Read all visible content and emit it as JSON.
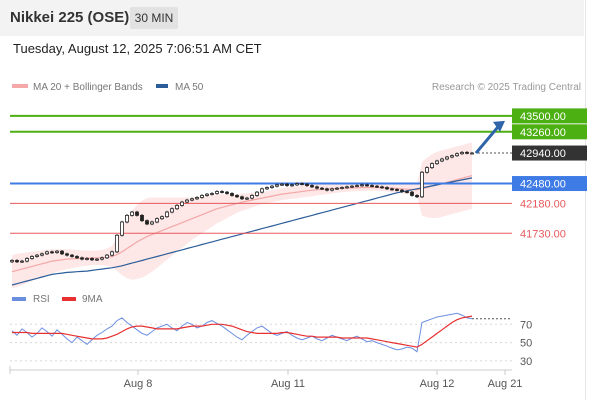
{
  "header": {
    "title": "Nikkei 225 (OSE)",
    "timeframe": "30 MIN"
  },
  "datetime": "Tuesday, August 12, 2025 7:06:51 AM CET",
  "copyright": "Research © 2025 Trading Central",
  "colors": {
    "resistance": "#4caf12",
    "pivot": "#3f7be5",
    "support": "#e8595d",
    "last": "#333333",
    "ma20": "#f4a8a8",
    "ma50": "#2c5d9a",
    "bollinger_fill": "#fde3e3",
    "arrow": "#2f64aa",
    "candle": "#222222",
    "rsi": "#6b8fe0",
    "rsi_ma": "#e83030"
  },
  "chart_data": [
    {
      "type": "candlestick",
      "legend": [
        {
          "name": "MA 20 + Bollinger Bands",
          "color": "#f4a8a8"
        },
        {
          "name": "MA 50",
          "color": "#2c5d9a"
        }
      ],
      "ylim": [
        40950,
        43800
      ],
      "x_ticks": [
        "Aug 8",
        "Aug 11",
        "Aug 12",
        "Aug 21"
      ],
      "levels": [
        {
          "value": 43500,
          "label": "43500.00",
          "kind": "resistance"
        },
        {
          "value": 43260,
          "label": "43260.00",
          "kind": "resistance"
        },
        {
          "value": 42940,
          "label": "42940.00",
          "kind": "last"
        },
        {
          "value": 42480,
          "label": "42480.00",
          "kind": "pivot"
        },
        {
          "value": 42180,
          "label": "42180.00",
          "kind": "support"
        },
        {
          "value": 41730,
          "label": "41730.00",
          "kind": "support"
        }
      ],
      "closes": [
        41320,
        41300,
        41310,
        41350,
        41380,
        41400,
        41420,
        41450,
        41440,
        41460,
        41420,
        41400,
        41380,
        41360,
        41340,
        41350,
        41330,
        41340,
        41360,
        41400,
        41450,
        41700,
        41900,
        42000,
        42050,
        42000,
        41920,
        41870,
        41900,
        41950,
        41980,
        42050,
        42100,
        42150,
        42200,
        42230,
        42250,
        42270,
        42300,
        42320,
        42330,
        42360,
        42350,
        42330,
        42300,
        42280,
        42250,
        42260,
        42300,
        42350,
        42400,
        42420,
        42440,
        42460,
        42470,
        42450,
        42460,
        42480,
        42470,
        42450,
        42430,
        42410,
        42400,
        42380,
        42400,
        42410,
        42420,
        42430,
        42440,
        42450,
        42460,
        42450,
        42440,
        42430,
        42420,
        42400,
        42390,
        42380,
        42360,
        42350,
        42300,
        42280,
        42650,
        42720,
        42780,
        42820,
        42850,
        42880,
        42900,
        42930,
        42950,
        42940,
        42940
      ],
      "ma20": [
        41150,
        41170,
        41190,
        41210,
        41230,
        41250,
        41270,
        41290,
        41310,
        41320,
        41330,
        41340,
        41345,
        41350,
        41352,
        41355,
        41357,
        41360,
        41362,
        41370,
        41380,
        41410,
        41450,
        41500,
        41550,
        41600,
        41640,
        41680,
        41710,
        41740,
        41770,
        41800,
        41830,
        41860,
        41890,
        41920,
        41950,
        41980,
        42010,
        42040,
        42070,
        42100,
        42120,
        42140,
        42160,
        42180,
        42200,
        42215,
        42230,
        42245,
        42260,
        42275,
        42290,
        42305,
        42320,
        42330,
        42340,
        42350,
        42360,
        42370,
        42378,
        42385,
        42390,
        42395,
        42400,
        42405,
        42410,
        42412,
        42414,
        42416,
        42418,
        42420,
        42420,
        42420,
        42418,
        42415,
        42410,
        42405,
        42400,
        42395,
        42390,
        42385,
        42400,
        42420,
        42440,
        42460,
        42480,
        42500,
        42520,
        42540,
        42560,
        42580,
        42600
      ],
      "ma50": [
        40950,
        40970,
        40990,
        41010,
        41030,
        41050,
        41070,
        41090,
        41110,
        41120,
        41130,
        41140,
        41145,
        41150,
        41155,
        41160,
        41170,
        41180,
        41190,
        41200,
        41210,
        41225,
        41240,
        41260,
        41280,
        41300,
        41320,
        41340,
        41360,
        41380,
        41400,
        41420,
        41440,
        41460,
        41480,
        41500,
        41520,
        41540,
        41560,
        41580,
        41600,
        41620,
        41640,
        41660,
        41680,
        41700,
        41720,
        41740,
        41760,
        41780,
        41800,
        41820,
        41840,
        41860,
        41880,
        41900,
        41920,
        41940,
        41960,
        41980,
        42000,
        42020,
        42040,
        42060,
        42080,
        42100,
        42120,
        42140,
        42160,
        42180,
        42200,
        42220,
        42240,
        42260,
        42280,
        42300,
        42320,
        42340,
        42355,
        42370,
        42385,
        42400,
        42415,
        42430,
        42445,
        42460,
        42475,
        42490,
        42505,
        42520,
        42535,
        42550,
        42565
      ],
      "bollinger_width": [
        250,
        250,
        240,
        230,
        220,
        210,
        200,
        190,
        180,
        170,
        160,
        150,
        140,
        130,
        120,
        115,
        110,
        110,
        115,
        130,
        160,
        250,
        350,
        450,
        520,
        560,
        580,
        580,
        560,
        530,
        500,
        470,
        440,
        410,
        380,
        350,
        320,
        300,
        280,
        260,
        240,
        220,
        200,
        180,
        160,
        140,
        130,
        120,
        110,
        100,
        95,
        90,
        90,
        90,
        90,
        90,
        90,
        90,
        90,
        90,
        90,
        85,
        80,
        75,
        70,
        65,
        60,
        55,
        50,
        50,
        50,
        50,
        50,
        50,
        50,
        55,
        60,
        65,
        70,
        75,
        80,
        90,
        400,
        450,
        480,
        500,
        500,
        500,
        500,
        500,
        500,
        500,
        500
      ]
    },
    {
      "type": "line",
      "legend": [
        {
          "name": "RSI",
          "color": "#6b8fe0"
        },
        {
          "name": "9MA",
          "color": "#e83030"
        }
      ],
      "ylim": [
        20,
        90
      ],
      "y_ticks": [
        70,
        50,
        30
      ],
      "rsi": [
        63,
        58,
        65,
        61,
        56,
        60,
        66,
        62,
        57,
        64,
        59,
        54,
        50,
        56,
        52,
        48,
        53,
        58,
        61,
        65,
        68,
        74,
        77,
        72,
        68,
        64,
        60,
        58,
        62,
        66,
        68,
        70,
        66,
        63,
        68,
        72,
        70,
        66,
        68,
        72,
        74,
        71,
        68,
        64,
        60,
        56,
        53,
        58,
        62,
        66,
        68,
        64,
        60,
        58,
        60,
        62,
        58,
        55,
        53,
        55,
        57,
        54,
        52,
        55,
        58,
        56,
        54,
        52,
        55,
        57,
        54,
        51,
        52,
        50,
        48,
        46,
        44,
        42,
        43,
        45,
        44,
        40,
        72,
        74,
        76,
        78,
        79,
        80,
        81,
        82,
        80,
        77,
        76
      ],
      "ma9": [
        61,
        61,
        61,
        61,
        60,
        60,
        60,
        60,
        60,
        60,
        60,
        59,
        58,
        57,
        56,
        55,
        54,
        54,
        54,
        55,
        57,
        59,
        62,
        65,
        67,
        68,
        68,
        67,
        66,
        65,
        65,
        65,
        65,
        65,
        66,
        67,
        68,
        68,
        68,
        69,
        70,
        70,
        70,
        69,
        68,
        66,
        64,
        62,
        61,
        60,
        60,
        60,
        60,
        60,
        61,
        61,
        60,
        59,
        58,
        57,
        57,
        56,
        56,
        56,
        56,
        56,
        55,
        55,
        55,
        55,
        55,
        55,
        54,
        53,
        52,
        51,
        50,
        49,
        48,
        47,
        46,
        45,
        48,
        52,
        56,
        60,
        64,
        68,
        72,
        75,
        77,
        78,
        79
      ]
    }
  ]
}
